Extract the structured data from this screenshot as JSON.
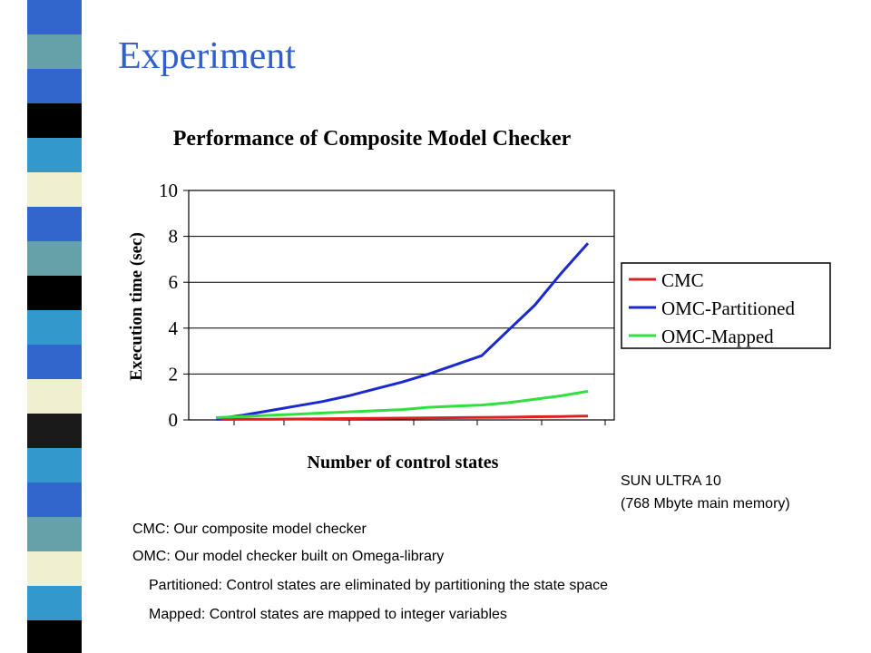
{
  "slide": {
    "title": "Experiment",
    "system_line1": "SUN ULTRA 10",
    "system_line2": "(768  Mbyte main memory)",
    "notes": [
      "CMC: Our composite model checker",
      "OMC: Our model checker built on Omega-library",
      "Partitioned: Control states are eliminated by partitioning the state space",
      "Mapped: Control states are mapped to integer variables"
    ]
  },
  "colors": {
    "title": "#3060cc",
    "stripes": [
      "#3366cc",
      "#ffffff",
      "#000000",
      "#f0f0d0",
      "#3399cc",
      "#66a0a8",
      "#1a1a1a"
    ]
  },
  "chart_data": {
    "type": "line",
    "title": "Performance of Composite Model Checker",
    "xlabel": "Number of control states",
    "ylabel": "Execution time (sec)",
    "ylim": [
      0,
      10
    ],
    "yticks": [
      "0",
      "2",
      "4",
      "6",
      "8",
      "10"
    ],
    "x": [
      1,
      2,
      3,
      4,
      5,
      6,
      7,
      8,
      9,
      10,
      11,
      12,
      13,
      14,
      15
    ],
    "grid": true,
    "legend_position": "right",
    "series": [
      {
        "name": "CMC",
        "color": "#e02020",
        "values": [
          0.02,
          0.03,
          0.03,
          0.04,
          0.05,
          0.06,
          0.07,
          0.08,
          0.09,
          0.1,
          0.11,
          0.12,
          0.14,
          0.15,
          0.17
        ]
      },
      {
        "name": "OMC-Partitioned",
        "color": "#1a2ad0",
        "values": [
          0.05,
          0.2,
          0.4,
          0.6,
          0.8,
          1.05,
          1.35,
          1.65,
          2.0,
          2.4,
          2.8,
          3.9,
          5.0,
          6.4,
          7.7
        ]
      },
      {
        "name": "OMC-Mapped",
        "color": "#30e040",
        "values": [
          0.1,
          0.15,
          0.2,
          0.25,
          0.3,
          0.35,
          0.4,
          0.45,
          0.55,
          0.6,
          0.65,
          0.75,
          0.9,
          1.05,
          1.25
        ]
      }
    ]
  }
}
